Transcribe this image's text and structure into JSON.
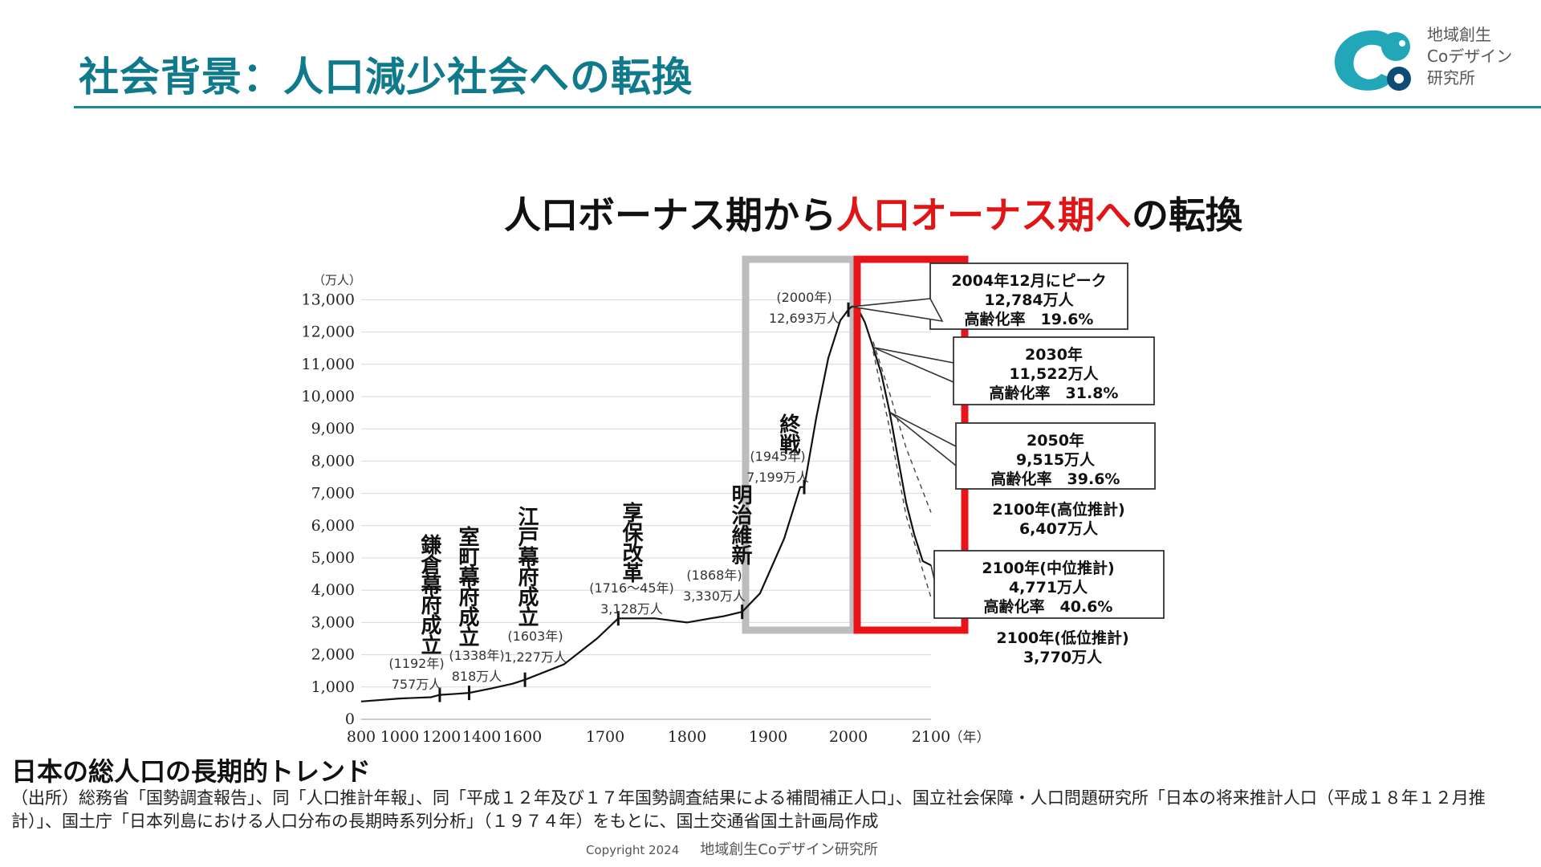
{
  "header": {
    "title": "社会背景：人口減少社会への転換",
    "logo_lines": [
      "地域創生",
      "Coデザイン",
      "研究所"
    ]
  },
  "headline": {
    "part1": "人口ボーナス期から",
    "part2_red": "人口オーナス期へ",
    "part3": "の転換"
  },
  "chart_data": {
    "type": "line",
    "ylabel": "（万人）",
    "xlabel": "（年）",
    "ylim": [
      0,
      13000
    ],
    "xlim": [
      800,
      2100
    ],
    "y_ticks": [
      0,
      1000,
      2000,
      3000,
      4000,
      5000,
      6000,
      7000,
      8000,
      9000,
      10000,
      11000,
      12000,
      13000
    ],
    "y_tick_labels": [
      "0",
      "1,000",
      "2,000",
      "3,000",
      "4,000",
      "5,000",
      "6,000",
      "7,000",
      "8,000",
      "9,000",
      "10,000",
      "11,000",
      "12,000",
      "13,000"
    ],
    "x_ticks": [
      800,
      1000,
      1200,
      1400,
      1600,
      1700,
      1800,
      1900,
      2000,
      2100
    ],
    "x_tick_labels": [
      "800",
      "1000",
      "1200",
      "1400",
      "1600",
      "1700",
      "1800",
      "1900",
      "2000",
      "2100"
    ],
    "grid": true,
    "series": [
      {
        "points": [
          [
            800,
            551
          ],
          [
            1000,
            644
          ],
          [
            1150,
            684
          ],
          [
            1192,
            757
          ],
          [
            1280,
            790
          ],
          [
            1338,
            818
          ],
          [
            1450,
            960
          ],
          [
            1550,
            1100
          ],
          [
            1603,
            1227
          ],
          [
            1650,
            1700
          ],
          [
            1690,
            2500
          ],
          [
            1716,
            3128
          ],
          [
            1760,
            3130
          ],
          [
            1800,
            3000
          ],
          [
            1846,
            3200
          ],
          [
            1868,
            3330
          ],
          [
            1890,
            3900
          ],
          [
            1920,
            5596
          ],
          [
            1940,
            7193
          ],
          [
            1945,
            7199
          ],
          [
            1960,
            9342
          ],
          [
            1975,
            11194
          ],
          [
            1990,
            12361
          ],
          [
            2000,
            12693
          ],
          [
            2004,
            12784
          ],
          [
            2010,
            12806
          ],
          [
            2020,
            12300
          ],
          [
            2030,
            11522
          ],
          [
            2040,
            10700
          ],
          [
            2050,
            9515
          ],
          [
            2060,
            8100
          ],
          [
            2070,
            6700
          ],
          [
            2080,
            5700
          ],
          [
            2090,
            4900
          ],
          [
            2100,
            4771
          ]
        ]
      },
      {
        "points": [
          [
            2030,
            11700
          ],
          [
            2050,
            10100
          ],
          [
            2070,
            8400
          ],
          [
            2100,
            6407
          ]
        ]
      },
      {
        "points": [
          [
            2030,
            11400
          ],
          [
            2050,
            9000
          ],
          [
            2070,
            6300
          ],
          [
            2100,
            3770
          ]
        ]
      }
    ],
    "era_annotations": [
      {
        "x": 1192,
        "event": "鎌倉幕府成立",
        "year_label": "(1192年)",
        "value_label": "757万人"
      },
      {
        "x": 1338,
        "event": "室町幕府成立",
        "year_label": "(1338年)",
        "value_label": "818万人"
      },
      {
        "x": 1603,
        "event": "江戸幕府成立",
        "year_label": "(1603年)",
        "value_label": "1,227万人"
      },
      {
        "x": 1716,
        "event": "享保改革",
        "year_label": "(1716～45年)",
        "value_label": "3,128万人"
      },
      {
        "x": 1868,
        "event": "明治維新",
        "year_label": "(1868年)",
        "value_label": "3,330万人"
      },
      {
        "x": 1945,
        "event": "終戦",
        "year_label": "(1945年)",
        "value_label": "7,199万人"
      },
      {
        "x": 2000,
        "event": "",
        "year_label": "(2000年)",
        "value_label": "12,693万人"
      }
    ],
    "callouts": [
      {
        "x": 2004,
        "y": 12784,
        "lines": [
          "2004年12月にピーク",
          "12,784万人",
          "高齢化率　19.6%"
        ],
        "boxed": true
      },
      {
        "x": 2030,
        "y": 11522,
        "lines": [
          "2030年",
          "11,522万人",
          "高齢化率　31.8%"
        ],
        "boxed": true
      },
      {
        "x": 2050,
        "y": 9515,
        "lines": [
          "2050年",
          "9,515万人",
          "高齢化率　39.6%"
        ],
        "boxed": true
      },
      {
        "x": 2100,
        "y": 6407,
        "lines": [
          "2100年(高位推計)",
          "6,407万人"
        ],
        "boxed": false
      },
      {
        "x": 2100,
        "y": 4771,
        "lines": [
          "2100年(中位推計)",
          "4,771万人",
          "高齢化率　40.6%"
        ],
        "boxed": true
      },
      {
        "x": 2100,
        "y": 3770,
        "lines": [
          "2100年(低位推計)",
          "3,770万人"
        ],
        "boxed": false
      }
    ],
    "highlight_colors": {
      "gray_box": "#bdbdbd",
      "red_box": "#e8141a"
    }
  },
  "caption": {
    "title": "日本の総人口の長期的トレンド",
    "source": "（出所）総務省「国勢調査報告」、同「人口推計年報」、同「平成１２年及び１７年国勢調査結果による補間補正人口」、国立社会保障・人口問題研究所「日本の将来推計人口（平成１８年１２月推計）」、国土庁「日本列島における人口分布の長期時系列分析」（１９７４年）をもとに、国土交通省国土計画局作成"
  },
  "footer": {
    "copyright": "Copyright 2024",
    "org": "地域創生Coデザイン研究所"
  }
}
